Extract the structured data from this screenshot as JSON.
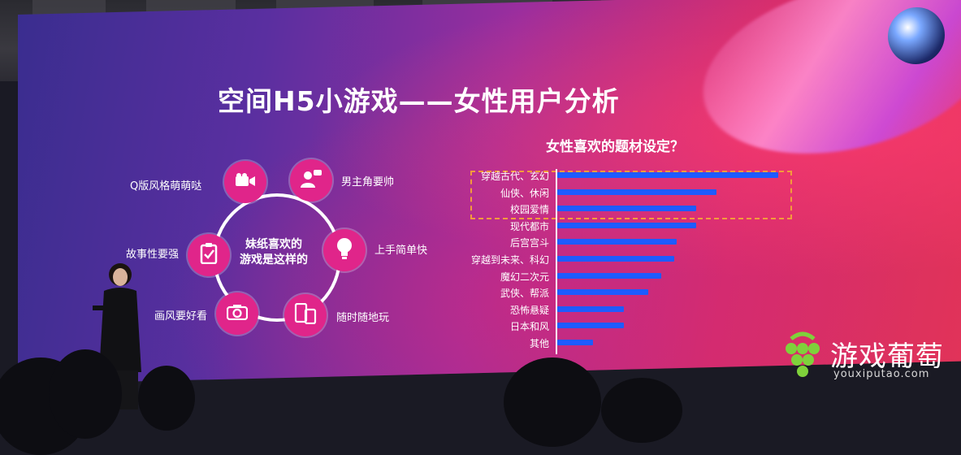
{
  "slide": {
    "title": "空间H5小游戏——女性用户分析",
    "center_text_line1": "妹纸喜欢的",
    "center_text_line2": "游戏是这样的",
    "nodes": [
      {
        "label": "Q版风格萌萌哒",
        "icon": "video-camera-icon"
      },
      {
        "label": "男主角要帅",
        "icon": "user-chat-icon"
      },
      {
        "label": "故事性要强",
        "icon": "clipboard-icon"
      },
      {
        "label": "上手简单快",
        "icon": "lightbulb-icon"
      },
      {
        "label": "画风要好看",
        "icon": "camera-icon"
      },
      {
        "label": "随时随地玩",
        "icon": "devices-icon"
      }
    ]
  },
  "chart_data": {
    "type": "bar",
    "title": "女性喜欢的题材设定？",
    "categories": [
      "穿越古代、玄幻",
      "仙侠、休闲",
      "校园爱情",
      "现代都市",
      "后宫宫斗",
      "穿越到未来、科幻",
      "魔幻二次元",
      "武侠、帮派",
      "恐怖悬疑",
      "日本和风",
      "其他"
    ],
    "values": [
      100,
      72,
      63,
      63,
      54,
      53,
      47,
      41,
      30,
      30,
      16
    ],
    "bar_color": "#1e5bff",
    "highlighted": [
      "穿越古代、玄幻",
      "仙侠、休闲",
      "校园爱情"
    ]
  },
  "logo": {
    "name": "游戏葡萄",
    "url": "youxiputao.com"
  },
  "colors": {
    "node": "#e0258a",
    "highlight_border": "#f39b3c"
  }
}
